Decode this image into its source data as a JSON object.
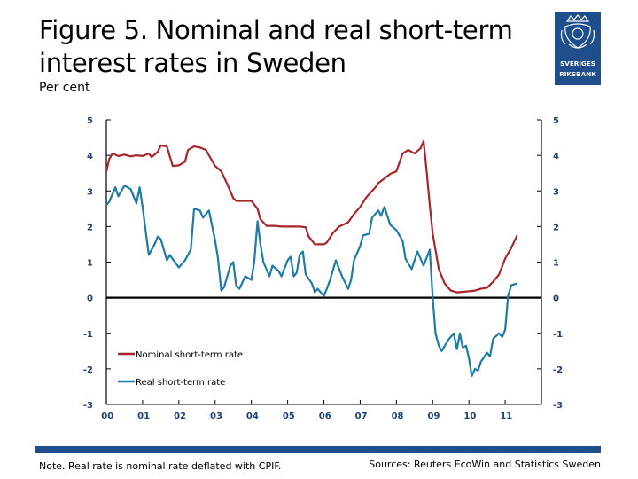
{
  "title": "Figure 5. Nominal and real short-term interest rates in Sweden",
  "subtitle": "Per cent",
  "logo": {
    "icon": "riksbank-crest-icon",
    "text_line1": "SVERIGES",
    "text_line2": "RIKSBANK",
    "color": "#1f4e8c"
  },
  "note": "Note. Real rate is nominal rate deflated with CPIF.",
  "sources": "Sources: Reuters EcoWin and Statistics Sweden",
  "colors": {
    "nominal": "#a8262b",
    "real": "#1d7ba8",
    "zero_line": "#000000",
    "bar": "#1f4e8c",
    "tick_label": "#1f3f7a"
  },
  "chart_data": {
    "type": "line",
    "title": "",
    "xlabel": "",
    "ylabel": "",
    "x_ticks": [
      "00",
      "01",
      "02",
      "03",
      "04",
      "05",
      "06",
      "07",
      "08",
      "09",
      "10",
      "11"
    ],
    "xlim": [
      2000,
      2012
    ],
    "ylim": [
      -3,
      5
    ],
    "y_ticks": [
      5,
      4,
      3,
      2,
      1,
      0,
      -1,
      -2,
      -3
    ],
    "legend_position": "bottom-left",
    "grid": false,
    "series": [
      {
        "name": "Nominal short-term rate",
        "color": "#a8262b",
        "points": [
          [
            2000.0,
            3.55
          ],
          [
            2000.08,
            3.9
          ],
          [
            2000.17,
            4.05
          ],
          [
            2000.33,
            3.98
          ],
          [
            2000.5,
            4.02
          ],
          [
            2000.67,
            3.97
          ],
          [
            2000.83,
            4.0
          ],
          [
            2001.0,
            3.98
          ],
          [
            2001.17,
            4.05
          ],
          [
            2001.25,
            3.95
          ],
          [
            2001.42,
            4.1
          ],
          [
            2001.5,
            4.28
          ],
          [
            2001.67,
            4.25
          ],
          [
            2001.83,
            3.7
          ],
          [
            2002.0,
            3.72
          ],
          [
            2002.17,
            3.82
          ],
          [
            2002.25,
            4.15
          ],
          [
            2002.42,
            4.25
          ],
          [
            2002.58,
            4.22
          ],
          [
            2002.75,
            4.15
          ],
          [
            2002.83,
            4.0
          ],
          [
            2003.0,
            3.7
          ],
          [
            2003.17,
            3.55
          ],
          [
            2003.33,
            3.2
          ],
          [
            2003.5,
            2.8
          ],
          [
            2003.58,
            2.72
          ],
          [
            2003.83,
            2.72
          ],
          [
            2004.0,
            2.72
          ],
          [
            2004.17,
            2.5
          ],
          [
            2004.25,
            2.2
          ],
          [
            2004.42,
            2.02
          ],
          [
            2004.67,
            2.02
          ],
          [
            2004.83,
            2.0
          ],
          [
            2005.0,
            2.0
          ],
          [
            2005.33,
            2.0
          ],
          [
            2005.5,
            1.98
          ],
          [
            2005.58,
            1.72
          ],
          [
            2005.75,
            1.5
          ],
          [
            2006.0,
            1.5
          ],
          [
            2006.08,
            1.55
          ],
          [
            2006.25,
            1.82
          ],
          [
            2006.42,
            2.0
          ],
          [
            2006.67,
            2.12
          ],
          [
            2006.83,
            2.35
          ],
          [
            2007.0,
            2.55
          ],
          [
            2007.17,
            2.82
          ],
          [
            2007.42,
            3.1
          ],
          [
            2007.5,
            3.22
          ],
          [
            2007.67,
            3.35
          ],
          [
            2007.83,
            3.48
          ],
          [
            2008.0,
            3.55
          ],
          [
            2008.17,
            4.05
          ],
          [
            2008.33,
            4.15
          ],
          [
            2008.5,
            4.05
          ],
          [
            2008.67,
            4.2
          ],
          [
            2008.75,
            4.4
          ],
          [
            2008.83,
            3.6
          ],
          [
            2008.92,
            2.6
          ],
          [
            2009.0,
            1.8
          ],
          [
            2009.17,
            0.8
          ],
          [
            2009.33,
            0.4
          ],
          [
            2009.5,
            0.2
          ],
          [
            2009.67,
            0.15
          ],
          [
            2010.0,
            0.18
          ],
          [
            2010.17,
            0.2
          ],
          [
            2010.33,
            0.25
          ],
          [
            2010.5,
            0.28
          ],
          [
            2010.67,
            0.45
          ],
          [
            2010.83,
            0.65
          ],
          [
            2011.0,
            1.1
          ],
          [
            2011.17,
            1.4
          ],
          [
            2011.33,
            1.75
          ]
        ]
      },
      {
        "name": "Real short-term rate",
        "color": "#1d7ba8",
        "points": [
          [
            2000.0,
            2.6
          ],
          [
            2000.08,
            2.7
          ],
          [
            2000.25,
            3.1
          ],
          [
            2000.33,
            2.85
          ],
          [
            2000.5,
            3.15
          ],
          [
            2000.67,
            3.05
          ],
          [
            2000.83,
            2.65
          ],
          [
            2000.92,
            3.1
          ],
          [
            2001.0,
            2.55
          ],
          [
            2001.17,
            1.2
          ],
          [
            2001.33,
            1.5
          ],
          [
            2001.42,
            1.72
          ],
          [
            2001.5,
            1.65
          ],
          [
            2001.67,
            1.05
          ],
          [
            2001.75,
            1.2
          ],
          [
            2002.0,
            0.85
          ],
          [
            2002.17,
            1.05
          ],
          [
            2002.33,
            1.35
          ],
          [
            2002.42,
            2.5
          ],
          [
            2002.58,
            2.45
          ],
          [
            2002.67,
            2.25
          ],
          [
            2002.83,
            2.45
          ],
          [
            2003.0,
            1.6
          ],
          [
            2003.08,
            1.1
          ],
          [
            2003.17,
            0.2
          ],
          [
            2003.25,
            0.3
          ],
          [
            2003.42,
            0.9
          ],
          [
            2003.5,
            1.0
          ],
          [
            2003.58,
            0.35
          ],
          [
            2003.67,
            0.25
          ],
          [
            2003.83,
            0.6
          ],
          [
            2004.0,
            0.5
          ],
          [
            2004.08,
            1.0
          ],
          [
            2004.17,
            2.15
          ],
          [
            2004.25,
            1.5
          ],
          [
            2004.33,
            1.0
          ],
          [
            2004.5,
            0.6
          ],
          [
            2004.58,
            0.9
          ],
          [
            2004.75,
            0.75
          ],
          [
            2004.83,
            0.6
          ],
          [
            2005.0,
            1.05
          ],
          [
            2005.08,
            1.15
          ],
          [
            2005.17,
            0.6
          ],
          [
            2005.25,
            0.7
          ],
          [
            2005.33,
            1.2
          ],
          [
            2005.42,
            1.3
          ],
          [
            2005.5,
            0.65
          ],
          [
            2005.67,
            0.4
          ],
          [
            2005.75,
            0.15
          ],
          [
            2005.83,
            0.25
          ],
          [
            2006.0,
            0.05
          ],
          [
            2006.08,
            0.25
          ],
          [
            2006.17,
            0.5
          ],
          [
            2006.33,
            1.05
          ],
          [
            2006.5,
            0.6
          ],
          [
            2006.67,
            0.25
          ],
          [
            2006.75,
            0.5
          ],
          [
            2006.83,
            1.05
          ],
          [
            2007.0,
            1.45
          ],
          [
            2007.08,
            1.75
          ],
          [
            2007.25,
            1.8
          ],
          [
            2007.33,
            2.25
          ],
          [
            2007.5,
            2.45
          ],
          [
            2007.58,
            2.3
          ],
          [
            2007.67,
            2.55
          ],
          [
            2007.83,
            2.05
          ],
          [
            2008.0,
            1.9
          ],
          [
            2008.17,
            1.6
          ],
          [
            2008.25,
            1.1
          ],
          [
            2008.42,
            0.8
          ],
          [
            2008.58,
            1.3
          ],
          [
            2008.75,
            0.9
          ],
          [
            2008.92,
            1.35
          ],
          [
            2009.0,
            0.0
          ],
          [
            2009.08,
            -1.0
          ],
          [
            2009.17,
            -1.35
          ],
          [
            2009.25,
            -1.5
          ],
          [
            2009.42,
            -1.2
          ],
          [
            2009.58,
            -1.0
          ],
          [
            2009.67,
            -1.45
          ],
          [
            2009.75,
            -1.0
          ],
          [
            2009.83,
            -1.4
          ],
          [
            2009.92,
            -1.35
          ],
          [
            2010.0,
            -1.7
          ],
          [
            2010.08,
            -2.2
          ],
          [
            2010.17,
            -2.0
          ],
          [
            2010.25,
            -2.05
          ],
          [
            2010.33,
            -1.8
          ],
          [
            2010.5,
            -1.55
          ],
          [
            2010.58,
            -1.65
          ],
          [
            2010.67,
            -1.15
          ],
          [
            2010.83,
            -1.0
          ],
          [
            2010.92,
            -1.1
          ],
          [
            2011.0,
            -0.9
          ],
          [
            2011.08,
            0.05
          ],
          [
            2011.17,
            0.35
          ],
          [
            2011.33,
            0.4
          ]
        ]
      }
    ]
  }
}
